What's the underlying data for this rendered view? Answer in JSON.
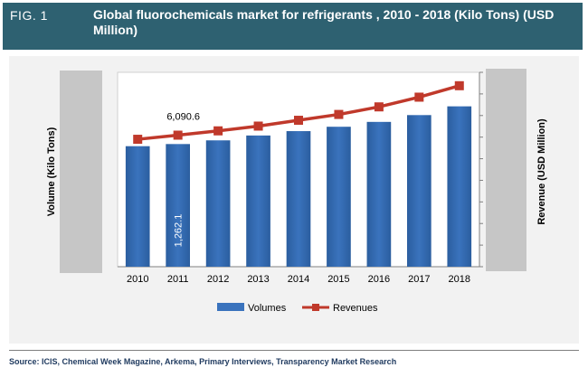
{
  "header": {
    "fig_label": "FIG. 1",
    "title": "Global fluorochemicals market for refrigerants , 2010 - 2018 (Kilo Tons) (USD Million)"
  },
  "source": "Source: ICIS, Chemical Week Magazine, Arkema, Primary Interviews, Transparency Market Research",
  "colors": {
    "header_bg": "#2e6171",
    "bar_fill": "#3a73bd",
    "line": "#c0392b",
    "axis_box": "#c6c6c6"
  },
  "chart_data": {
    "type": "bar",
    "categories": [
      "2010",
      "2011",
      "2012",
      "2013",
      "2014",
      "2015",
      "2016",
      "2017",
      "2018"
    ],
    "series": [
      {
        "name": "Volumes",
        "type": "bar",
        "axis": "left",
        "values": [
          1240,
          1262.1,
          1300,
          1350,
          1395,
          1440,
          1490,
          1560,
          1650
        ]
      },
      {
        "name": "Revenues",
        "type": "line",
        "axis": "right",
        "values": [
          5900,
          6090.6,
          6290,
          6510,
          6780,
          7050,
          7400,
          7850,
          8380
        ]
      }
    ],
    "data_labels": [
      {
        "series": "Volumes",
        "category": "2011",
        "text": "1,262.1"
      },
      {
        "series": "Revenues",
        "category": "2011",
        "text": "6,090.6"
      }
    ],
    "ylabel": "Volume (Kilo Tons)",
    "y2label": "Revenue (USD Million)",
    "ylim": [
      0,
      2000
    ],
    "y2lim": [
      0,
      9000
    ],
    "y_tick_labels_shown": false,
    "legend": {
      "position": "bottom",
      "entries": [
        "Volumes",
        "Revenues"
      ]
    },
    "grid": false
  }
}
